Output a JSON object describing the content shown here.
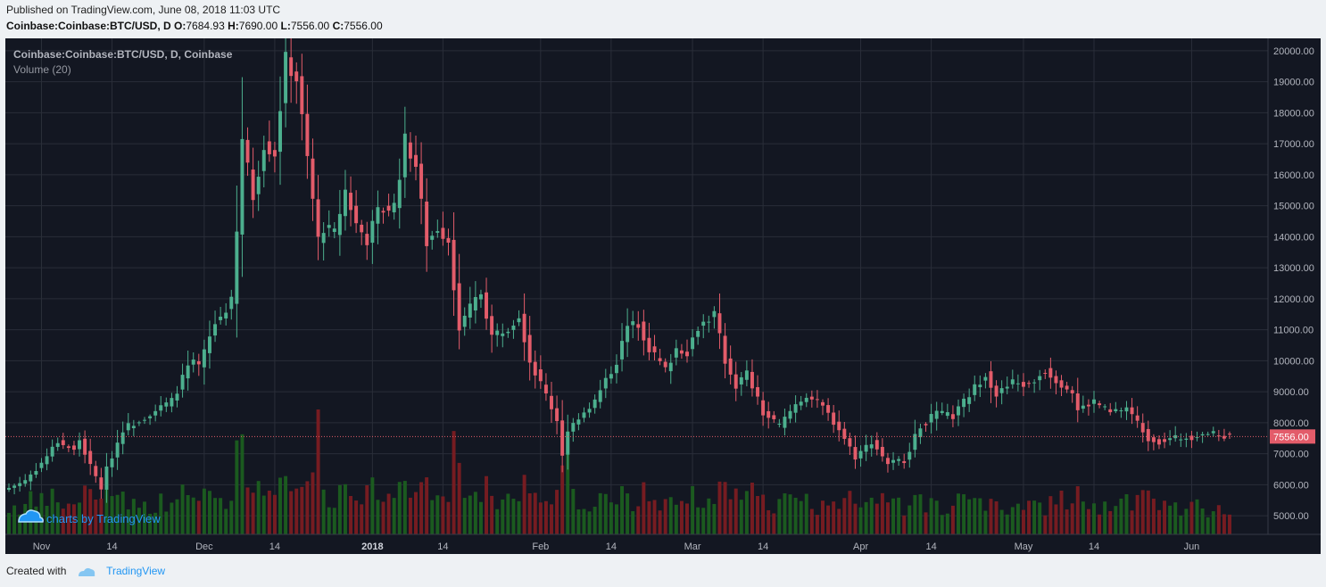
{
  "header": {
    "published": "Published on TradingView.com, June 08, 2018 11:03 UTC",
    "symbol": "Coinbase:Coinbase:BTC/USD, D",
    "o_label": "O:",
    "o_value": "7684.93",
    "h_label": "H:",
    "h_value": "7690.00",
    "l_label": "L:",
    "l_value": "7556.00",
    "c_label": "C:",
    "c_value": "7556.00"
  },
  "chart_legend": {
    "series_title": "Coinbase:Coinbase:BTC/USD, D, Coinbase",
    "volume_title": "Volume (20)"
  },
  "watermark": "charts by TradingView",
  "footer": {
    "created_with": "Created with",
    "brand": "TradingView"
  },
  "colors": {
    "up": "#4caf8e",
    "down": "#e35c6a",
    "vol_up": "#1b5e20",
    "vol_down": "#7b1c22",
    "background": "#131722",
    "grid": "#2a2e39",
    "last_price": "#e35c6a"
  },
  "chart_data": {
    "type": "candlestick",
    "title": "Coinbase:Coinbase:BTC/USD, D, Coinbase",
    "x_range": [
      "2017-10-26",
      "2018-06-08"
    ],
    "ylim": [
      4400,
      20400
    ],
    "y_ticks": [
      "20000.00",
      "19000.00",
      "18000.00",
      "17000.00",
      "16000.00",
      "15000.00",
      "14000.00",
      "13000.00",
      "12000.00",
      "11000.00",
      "10000.00",
      "9000.00",
      "8000.00",
      "7000.00",
      "6000.00",
      "5000.00"
    ],
    "x_ticks": [
      {
        "label": "Nov",
        "date": "2017-11-01",
        "bold": false
      },
      {
        "label": "14",
        "date": "2017-11-14",
        "bold": false
      },
      {
        "label": "Dec",
        "date": "2017-12-01",
        "bold": false
      },
      {
        "label": "14",
        "date": "2017-12-14",
        "bold": false
      },
      {
        "label": "2018",
        "date": "2018-01-01",
        "bold": true
      },
      {
        "label": "14",
        "date": "2018-01-14",
        "bold": false
      },
      {
        "label": "Feb",
        "date": "2018-02-01",
        "bold": false
      },
      {
        "label": "14",
        "date": "2018-02-14",
        "bold": false
      },
      {
        "label": "Mar",
        "date": "2018-03-01",
        "bold": false
      },
      {
        "label": "14",
        "date": "2018-03-14",
        "bold": false
      },
      {
        "label": "Apr",
        "date": "2018-04-01",
        "bold": false
      },
      {
        "label": "14",
        "date": "2018-04-14",
        "bold": false
      },
      {
        "label": "May",
        "date": "2018-05-01",
        "bold": false
      },
      {
        "label": "14",
        "date": "2018-05-14",
        "bold": false
      },
      {
        "label": "Jun",
        "date": "2018-06-01",
        "bold": false
      }
    ],
    "last_price": 7556,
    "last_price_label": "7556.00",
    "close_path": [
      [
        "2017-10-26",
        5900
      ],
      [
        "2017-10-29",
        6150
      ],
      [
        "2017-11-01",
        6700
      ],
      [
        "2017-11-04",
        7400
      ],
      [
        "2017-11-07",
        7100
      ],
      [
        "2017-11-08",
        7450
      ],
      [
        "2017-11-10",
        6600
      ],
      [
        "2017-11-12",
        5900
      ],
      [
        "2017-11-13",
        6500
      ],
      [
        "2017-11-16",
        7800
      ],
      [
        "2017-11-20",
        8200
      ],
      [
        "2017-11-25",
        8700
      ],
      [
        "2017-11-28",
        9800
      ],
      [
        "2017-11-29",
        9900
      ],
      [
        "2017-11-30",
        9800
      ],
      [
        "2017-12-03",
        11200
      ],
      [
        "2017-12-06",
        11900
      ],
      [
        "2017-12-07",
        14100
      ],
      [
        "2017-12-08",
        17100
      ],
      [
        "2017-12-10",
        15300
      ],
      [
        "2017-12-12",
        17000
      ],
      [
        "2017-12-14",
        16700
      ],
      [
        "2017-12-16",
        19700
      ],
      [
        "2017-12-18",
        19100
      ],
      [
        "2017-12-20",
        16500
      ],
      [
        "2017-12-22",
        13900
      ],
      [
        "2017-12-23",
        14300
      ],
      [
        "2017-12-25",
        14100
      ],
      [
        "2017-12-27",
        15500
      ],
      [
        "2017-12-29",
        14400
      ],
      [
        "2017-12-31",
        13900
      ],
      [
        "2018-01-02",
        14800
      ],
      [
        "2018-01-05",
        15000
      ],
      [
        "2018-01-07",
        17100
      ],
      [
        "2018-01-09",
        16300
      ],
      [
        "2018-01-11",
        13800
      ],
      [
        "2018-01-13",
        14300
      ],
      [
        "2018-01-15",
        13900
      ],
      [
        "2018-01-17",
        11000
      ],
      [
        "2018-01-19",
        11700
      ],
      [
        "2018-01-21",
        12200
      ],
      [
        "2018-01-23",
        10800
      ],
      [
        "2018-01-26",
        11100
      ],
      [
        "2018-01-28",
        11500
      ],
      [
        "2018-01-30",
        10000
      ],
      [
        "2018-02-02",
        8900
      ],
      [
        "2018-02-04",
        8100
      ],
      [
        "2018-02-05",
        7000
      ],
      [
        "2018-02-06",
        7700
      ],
      [
        "2018-02-08",
        8200
      ],
      [
        "2018-02-11",
        8700
      ],
      [
        "2018-02-15",
        10000
      ],
      [
        "2018-02-17",
        11100
      ],
      [
        "2018-02-19",
        11200
      ],
      [
        "2018-02-21",
        10400
      ],
      [
        "2018-02-24",
        9700
      ],
      [
        "2018-02-26",
        10400
      ],
      [
        "2018-02-28",
        10300
      ],
      [
        "2018-03-02",
        11100
      ],
      [
        "2018-03-05",
        11500
      ],
      [
        "2018-03-07",
        10000
      ],
      [
        "2018-03-09",
        9200
      ],
      [
        "2018-03-11",
        9600
      ],
      [
        "2018-03-14",
        8300
      ],
      [
        "2018-03-17",
        7900
      ],
      [
        "2018-03-20",
        8600
      ],
      [
        "2018-03-22",
        8900
      ],
      [
        "2018-03-25",
        8500
      ],
      [
        "2018-03-28",
        7800
      ],
      [
        "2018-03-31",
        6900
      ],
      [
        "2018-04-03",
        7400
      ],
      [
        "2018-04-06",
        6700
      ],
      [
        "2018-04-09",
        6800
      ],
      [
        "2018-04-12",
        7900
      ],
      [
        "2018-04-15",
        8300
      ],
      [
        "2018-04-18",
        8200
      ],
      [
        "2018-04-21",
        8900
      ],
      [
        "2018-04-24",
        9600
      ],
      [
        "2018-04-26",
        8900
      ],
      [
        "2018-04-29",
        9300
      ],
      [
        "2018-05-02",
        9200
      ],
      [
        "2018-05-05",
        9700
      ],
      [
        "2018-05-07",
        9400
      ],
      [
        "2018-05-10",
        9000
      ],
      [
        "2018-05-11",
        8400
      ],
      [
        "2018-05-14",
        8700
      ],
      [
        "2018-05-17",
        8300
      ],
      [
        "2018-05-20",
        8500
      ],
      [
        "2018-05-22",
        8000
      ],
      [
        "2018-05-24",
        7500
      ],
      [
        "2018-05-26",
        7400
      ],
      [
        "2018-05-29",
        7500
      ],
      [
        "2018-06-01",
        7550
      ],
      [
        "2018-06-03",
        7700
      ],
      [
        "2018-06-05",
        7620
      ],
      [
        "2018-06-08",
        7556
      ]
    ],
    "volume_peaks": [
      [
        "2017-12-08",
        "high"
      ],
      [
        "2017-12-22",
        "highest"
      ],
      [
        "2018-01-16",
        "high"
      ],
      [
        "2018-02-06",
        "high"
      ],
      [
        "2018-03-12",
        "medium"
      ]
    ]
  }
}
